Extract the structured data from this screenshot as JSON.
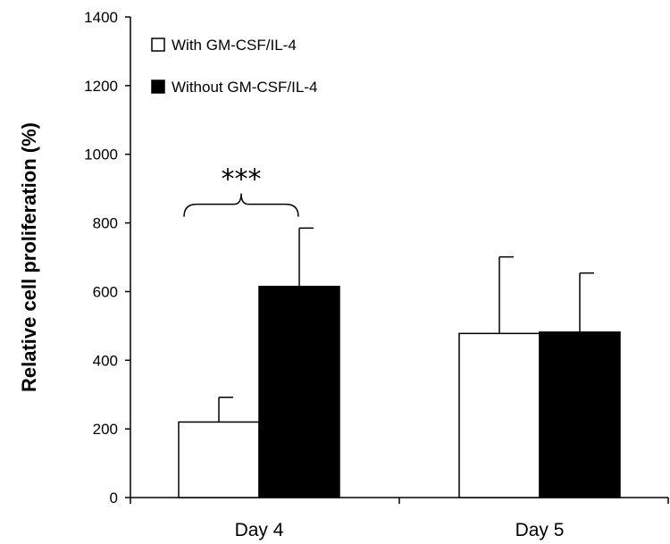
{
  "chart_data": {
    "type": "bar",
    "title": "",
    "xlabel": "",
    "ylabel": "Relative cell proliferation (%)",
    "ylim": [
      0,
      1400
    ],
    "yticks": [
      0,
      200,
      400,
      600,
      800,
      1000,
      1200,
      1400
    ],
    "grid": false,
    "legend_position": "top-left",
    "categories": [
      "Day 4",
      "Day 5"
    ],
    "series": [
      {
        "name": "With GM-CSF/IL-4",
        "fill": "#ffffff",
        "values": [
          220,
          478
        ],
        "errors": [
          72,
          223
        ]
      },
      {
        "name": "Without GM-CSF/IL-4",
        "fill": "#000000",
        "values": [
          615,
          482
        ],
        "errors": [
          170,
          172
        ]
      }
    ],
    "annotations": [
      {
        "text": "***",
        "category": "Day 4",
        "y": 870
      }
    ]
  }
}
